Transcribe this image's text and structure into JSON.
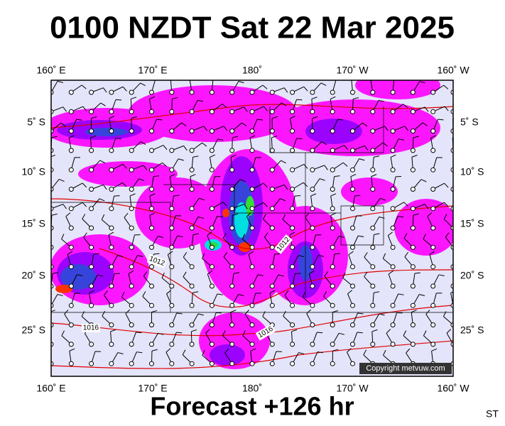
{
  "title": "0100 NZDT Sat 22 Mar 2025",
  "footer": "Forecast +126 hr",
  "corner_label": "ST",
  "copyright": "Copyright metvuw.com",
  "longitude_labels": [
    "160˚ E",
    "170˚ E",
    "180˚",
    "170˚ W",
    "160˚ W"
  ],
  "latitude_labels": [
    "5˚ S",
    "10˚ S",
    "15˚ S",
    "20˚ S",
    "25˚ S"
  ],
  "isobar_labels": [
    "1012",
    "1012",
    "1016",
    "1016"
  ]
}
